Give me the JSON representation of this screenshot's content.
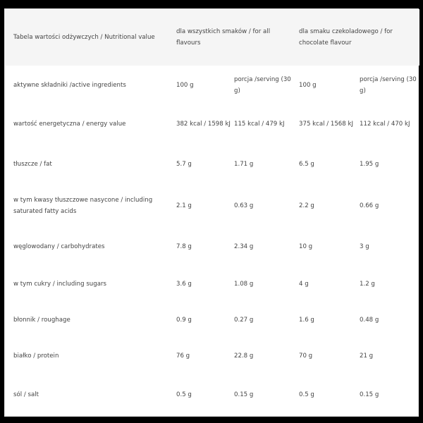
{
  "header": {
    "title": "Tabela wartości odżywczych / Nutritional value",
    "col_all": "dla wszystkich smaków / for all flavours",
    "col_choc": "dla smaku czekoladowego / for chocolate flavour"
  },
  "rows": [
    {
      "label": "aktywne składniki /active ingredients",
      "v": [
        "100 g",
        "porcja /serving (30 g)",
        "100 g",
        "porcja /serving (30 g)"
      ]
    },
    {
      "label": "wartość energetyczna / energy value",
      "v": [
        "382 kcal / 1598 kJ",
        "115 kcal / 479 kJ",
        "375 kcal / 1568 kJ",
        "112 kcal / 470 kJ"
      ]
    },
    {
      "label": "tłuszcze / fat",
      "v": [
        "5.7 g",
        "1.71 g",
        "6.5 g",
        "1.95 g"
      ]
    },
    {
      "label": "w tym kwasy tłuszczowe nasycone / including saturated fatty acids",
      "v": [
        "2.1 g",
        "0.63 g",
        "2.2 g",
        "0.66 g"
      ]
    },
    {
      "label": "węglowodany / carbohydrates",
      "v": [
        "7.8 g",
        "2.34 g",
        "10 g",
        "3 g"
      ]
    },
    {
      "label": "w tym cukry / including sugars",
      "v": [
        "3.6 g",
        "1.08 g",
        "4 g",
        "1.2 g"
      ]
    },
    {
      "label": "błonnik / roughage",
      "v": [
        "0.9 g",
        "0.27 g",
        "1.6 g",
        "0.48 g"
      ]
    },
    {
      "label": "białko / protein",
      "v": [
        "76 g",
        "22.8 g",
        "70 g",
        "21 g"
      ]
    },
    {
      "label": "sól / salt",
      "v": [
        "0.5 g",
        "0.15 g",
        "0.5 g",
        "0.15 g"
      ]
    }
  ]
}
